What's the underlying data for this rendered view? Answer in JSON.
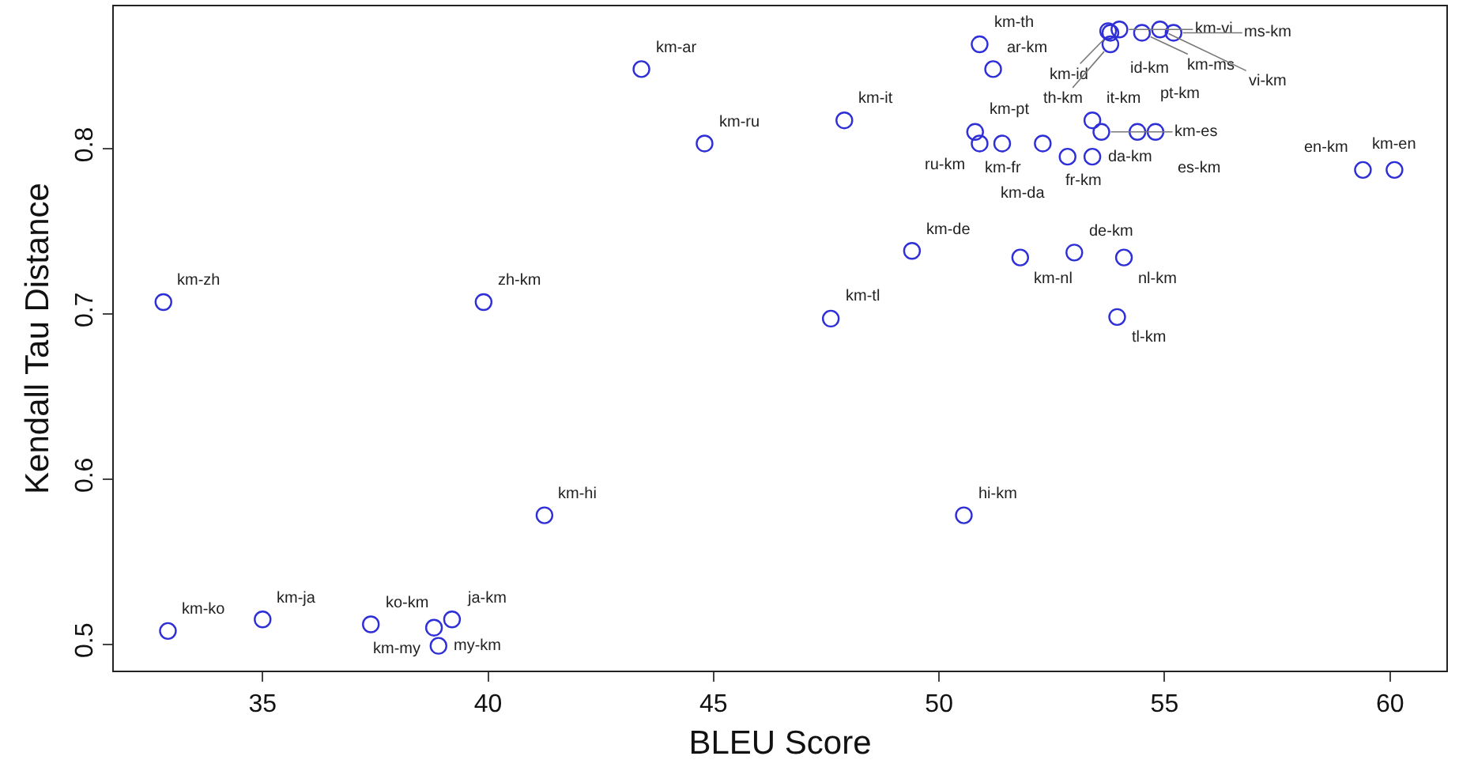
{
  "chart_data": {
    "type": "scatter",
    "xlabel": "BLEU Score",
    "ylabel": "Kendall Tau Distance",
    "xlim": [
      31.7,
      61.25
    ],
    "ylim": [
      0.484,
      0.886
    ],
    "xticks": [
      35,
      40,
      45,
      50,
      55,
      60
    ],
    "yticks": [
      0.5,
      0.6,
      0.7,
      0.8
    ],
    "marker": "circle",
    "series": [
      {
        "color": "#2f2fd8",
        "x": [
          32.8,
          32.9,
          35.0,
          37.4,
          38.8,
          39.2,
          38.9,
          39.9,
          41.25,
          43.4,
          44.8,
          47.9,
          47.6,
          49.4,
          50.55,
          50.9,
          51.2,
          50.8,
          50.9,
          51.4,
          52.3,
          51.8,
          52.85,
          53.4,
          53.0,
          54.1,
          53.95,
          53.4,
          53.6,
          54.4,
          54.8,
          53.75,
          53.8,
          54.0,
          54.5,
          54.9,
          55.2,
          53.8,
          59.4,
          60.1
        ],
        "values": [
          0.707,
          0.508,
          0.515,
          0.512,
          0.51,
          0.515,
          0.499,
          0.707,
          0.578,
          0.848,
          0.803,
          0.817,
          0.697,
          0.738,
          0.578,
          0.863,
          0.848,
          0.81,
          0.803,
          0.803,
          0.803,
          0.734,
          0.795,
          0.795,
          0.737,
          0.734,
          0.698,
          0.817,
          0.81,
          0.81,
          0.81,
          0.871,
          0.87,
          0.872,
          0.87,
          0.872,
          0.87,
          0.863,
          0.787,
          0.787
        ]
      }
    ],
    "annotations": [
      {
        "text": "km-zh",
        "x": 32.8,
        "y": 0.707
      },
      {
        "text": "km-ko",
        "x": 32.9,
        "y": 0.508
      },
      {
        "text": "km-ja",
        "x": 35.0,
        "y": 0.515
      },
      {
        "text": "ko-km",
        "x": 37.4,
        "y": 0.512
      },
      {
        "text": "km-my",
        "x": 38.8,
        "y": 0.51
      },
      {
        "text": "ja-km",
        "x": 39.2,
        "y": 0.515
      },
      {
        "text": "my-km",
        "x": 38.9,
        "y": 0.499
      },
      {
        "text": "zh-km",
        "x": 39.9,
        "y": 0.707
      },
      {
        "text": "km-hi",
        "x": 41.25,
        "y": 0.578
      },
      {
        "text": "km-ar",
        "x": 43.4,
        "y": 0.848
      },
      {
        "text": "km-ru",
        "x": 44.8,
        "y": 0.803
      },
      {
        "text": "km-it",
        "x": 47.9,
        "y": 0.817
      },
      {
        "text": "km-tl",
        "x": 47.6,
        "y": 0.697
      },
      {
        "text": "km-de",
        "x": 49.4,
        "y": 0.738
      },
      {
        "text": "hi-km",
        "x": 50.55,
        "y": 0.578
      },
      {
        "text": "km-th",
        "x": 50.9,
        "y": 0.863
      },
      {
        "text": "ar-km",
        "x": 51.2,
        "y": 0.848
      },
      {
        "text": "km-pt",
        "x": 50.8,
        "y": 0.81
      },
      {
        "text": "ru-km",
        "x": 50.9,
        "y": 0.803
      },
      {
        "text": "km-fr",
        "x": 51.4,
        "y": 0.803
      },
      {
        "text": "fr-km",
        "x": 52.3,
        "y": 0.803
      },
      {
        "text": "km-nl",
        "x": 51.8,
        "y": 0.734
      },
      {
        "text": "km-da",
        "x": 52.85,
        "y": 0.795
      },
      {
        "text": "da-km",
        "x": 53.4,
        "y": 0.795
      },
      {
        "text": "de-km",
        "x": 53.0,
        "y": 0.737
      },
      {
        "text": "nl-km",
        "x": 54.1,
        "y": 0.734
      },
      {
        "text": "tl-km",
        "x": 53.95,
        "y": 0.698
      },
      {
        "text": "it-km",
        "x": 53.4,
        "y": 0.817
      },
      {
        "text": "km-es",
        "x": 53.6,
        "y": 0.81
      },
      {
        "text": "pt-km",
        "x": 54.4,
        "y": 0.81
      },
      {
        "text": "es-km",
        "x": 54.8,
        "y": 0.81
      },
      {
        "text": "id-km",
        "x": 53.75,
        "y": 0.871
      },
      {
        "text": "km-id",
        "x": 53.8,
        "y": 0.87
      },
      {
        "text": "km-vi",
        "x": 54.0,
        "y": 0.872
      },
      {
        "text": "km-ms",
        "x": 54.5,
        "y": 0.87
      },
      {
        "text": "vi-km",
        "x": 54.9,
        "y": 0.872
      },
      {
        "text": "ms-km",
        "x": 55.2,
        "y": 0.87
      },
      {
        "text": "th-km",
        "x": 53.8,
        "y": 0.863
      },
      {
        "text": "en-km",
        "x": 59.4,
        "y": 0.787
      },
      {
        "text": "km-en",
        "x": 60.1,
        "y": 0.787
      }
    ]
  }
}
